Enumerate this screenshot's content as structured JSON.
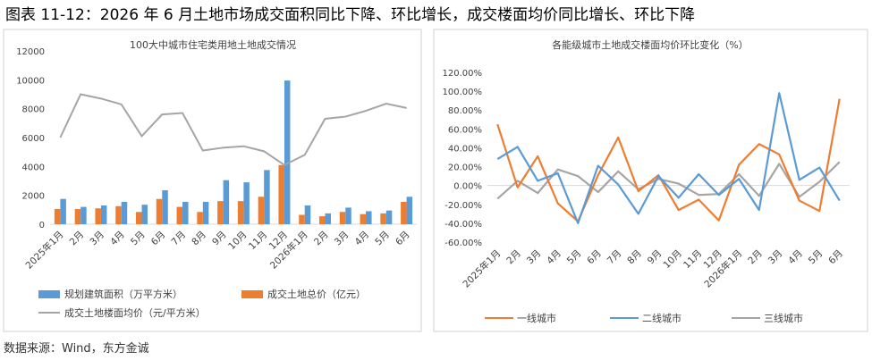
{
  "figure": {
    "title": "图表 11-12：2026 年 6 月土地市场成交面积同比下降、环比增长，成交楼面均价同比增长、环比下降",
    "source": "数据来源：Wind，东方金诚"
  },
  "chart_data": [
    {
      "type": "bar",
      "title": "100大中城市住宅类用地土地成交情况",
      "categories": [
        "2025年1月",
        "2月",
        "3月",
        "4月",
        "5月",
        "6月",
        "7月",
        "8月",
        "9月",
        "10月",
        "11月",
        "12月",
        "2026年1月",
        "2月",
        "3月",
        "4月",
        "5月",
        "6月"
      ],
      "ylim": [
        0,
        12000
      ],
      "yticks": [
        "0",
        "2000",
        "4000",
        "6000",
        "8000",
        "10000",
        "12000"
      ],
      "series": [
        {
          "name": "规划建筑面积（万平方米）",
          "kind": "bar",
          "color": "#5B9BD5",
          "values": [
            1750,
            1200,
            1300,
            1550,
            1350,
            2350,
            1550,
            1550,
            3050,
            2900,
            3750,
            9950,
            1300,
            750,
            1150,
            900,
            950,
            1900
          ]
        },
        {
          "name": "成交土地总价（亿元）",
          "kind": "bar",
          "color": "#ED7D31",
          "values": [
            1050,
            1050,
            1100,
            1250,
            850,
            1750,
            1200,
            850,
            1600,
            1600,
            1900,
            4100,
            650,
            550,
            850,
            700,
            750,
            1550
          ]
        },
        {
          "name": "成交土地楼面均价（元/平方米）",
          "kind": "line",
          "color": "#A5A5A5",
          "values": [
            6000,
            9000,
            8700,
            8300,
            6100,
            7600,
            7700,
            5100,
            5300,
            5400,
            5050,
            4100,
            4800,
            7300,
            7450,
            7850,
            8350,
            8050
          ]
        }
      ]
    },
    {
      "type": "line",
      "title": "各能级城市土地成交楼面均价环比变化（%）",
      "categories": [
        "2025年1月",
        "2月",
        "3月",
        "4月",
        "5月",
        "6月",
        "7月",
        "8月",
        "9月",
        "10月",
        "11月",
        "12月",
        "2026年1月",
        "2月",
        "3月",
        "4月",
        "5月",
        "6月"
      ],
      "ylim": [
        -60,
        120
      ],
      "yticks": [
        "-60.00%",
        "-40.00%",
        "-20.00%",
        "0.00%",
        "20.00%",
        "40.00%",
        "60.00%",
        "80.00%",
        "100.00%",
        "120.00%"
      ],
      "series": [
        {
          "name": "一线城市",
          "color": "#ED7D31",
          "values": [
            65,
            -2,
            31,
            -19,
            -38,
            11,
            51,
            -6,
            11,
            -26,
            -15,
            -37,
            22,
            44,
            33,
            -16,
            -27,
            92
          ]
        },
        {
          "name": "二线城市",
          "color": "#5B9BD5",
          "values": [
            28,
            41,
            5,
            13,
            -40,
            21,
            1,
            -30,
            10,
            -13,
            12,
            -10,
            7,
            -26,
            98,
            6,
            19,
            -16
          ]
        },
        {
          "name": "三线城市",
          "color": "#A5A5A5",
          "values": [
            -14,
            5,
            -8,
            17,
            10,
            -7,
            15,
            -4,
            7,
            2,
            -10,
            -9,
            12,
            -11,
            23,
            -12,
            4,
            25
          ]
        }
      ]
    }
  ]
}
